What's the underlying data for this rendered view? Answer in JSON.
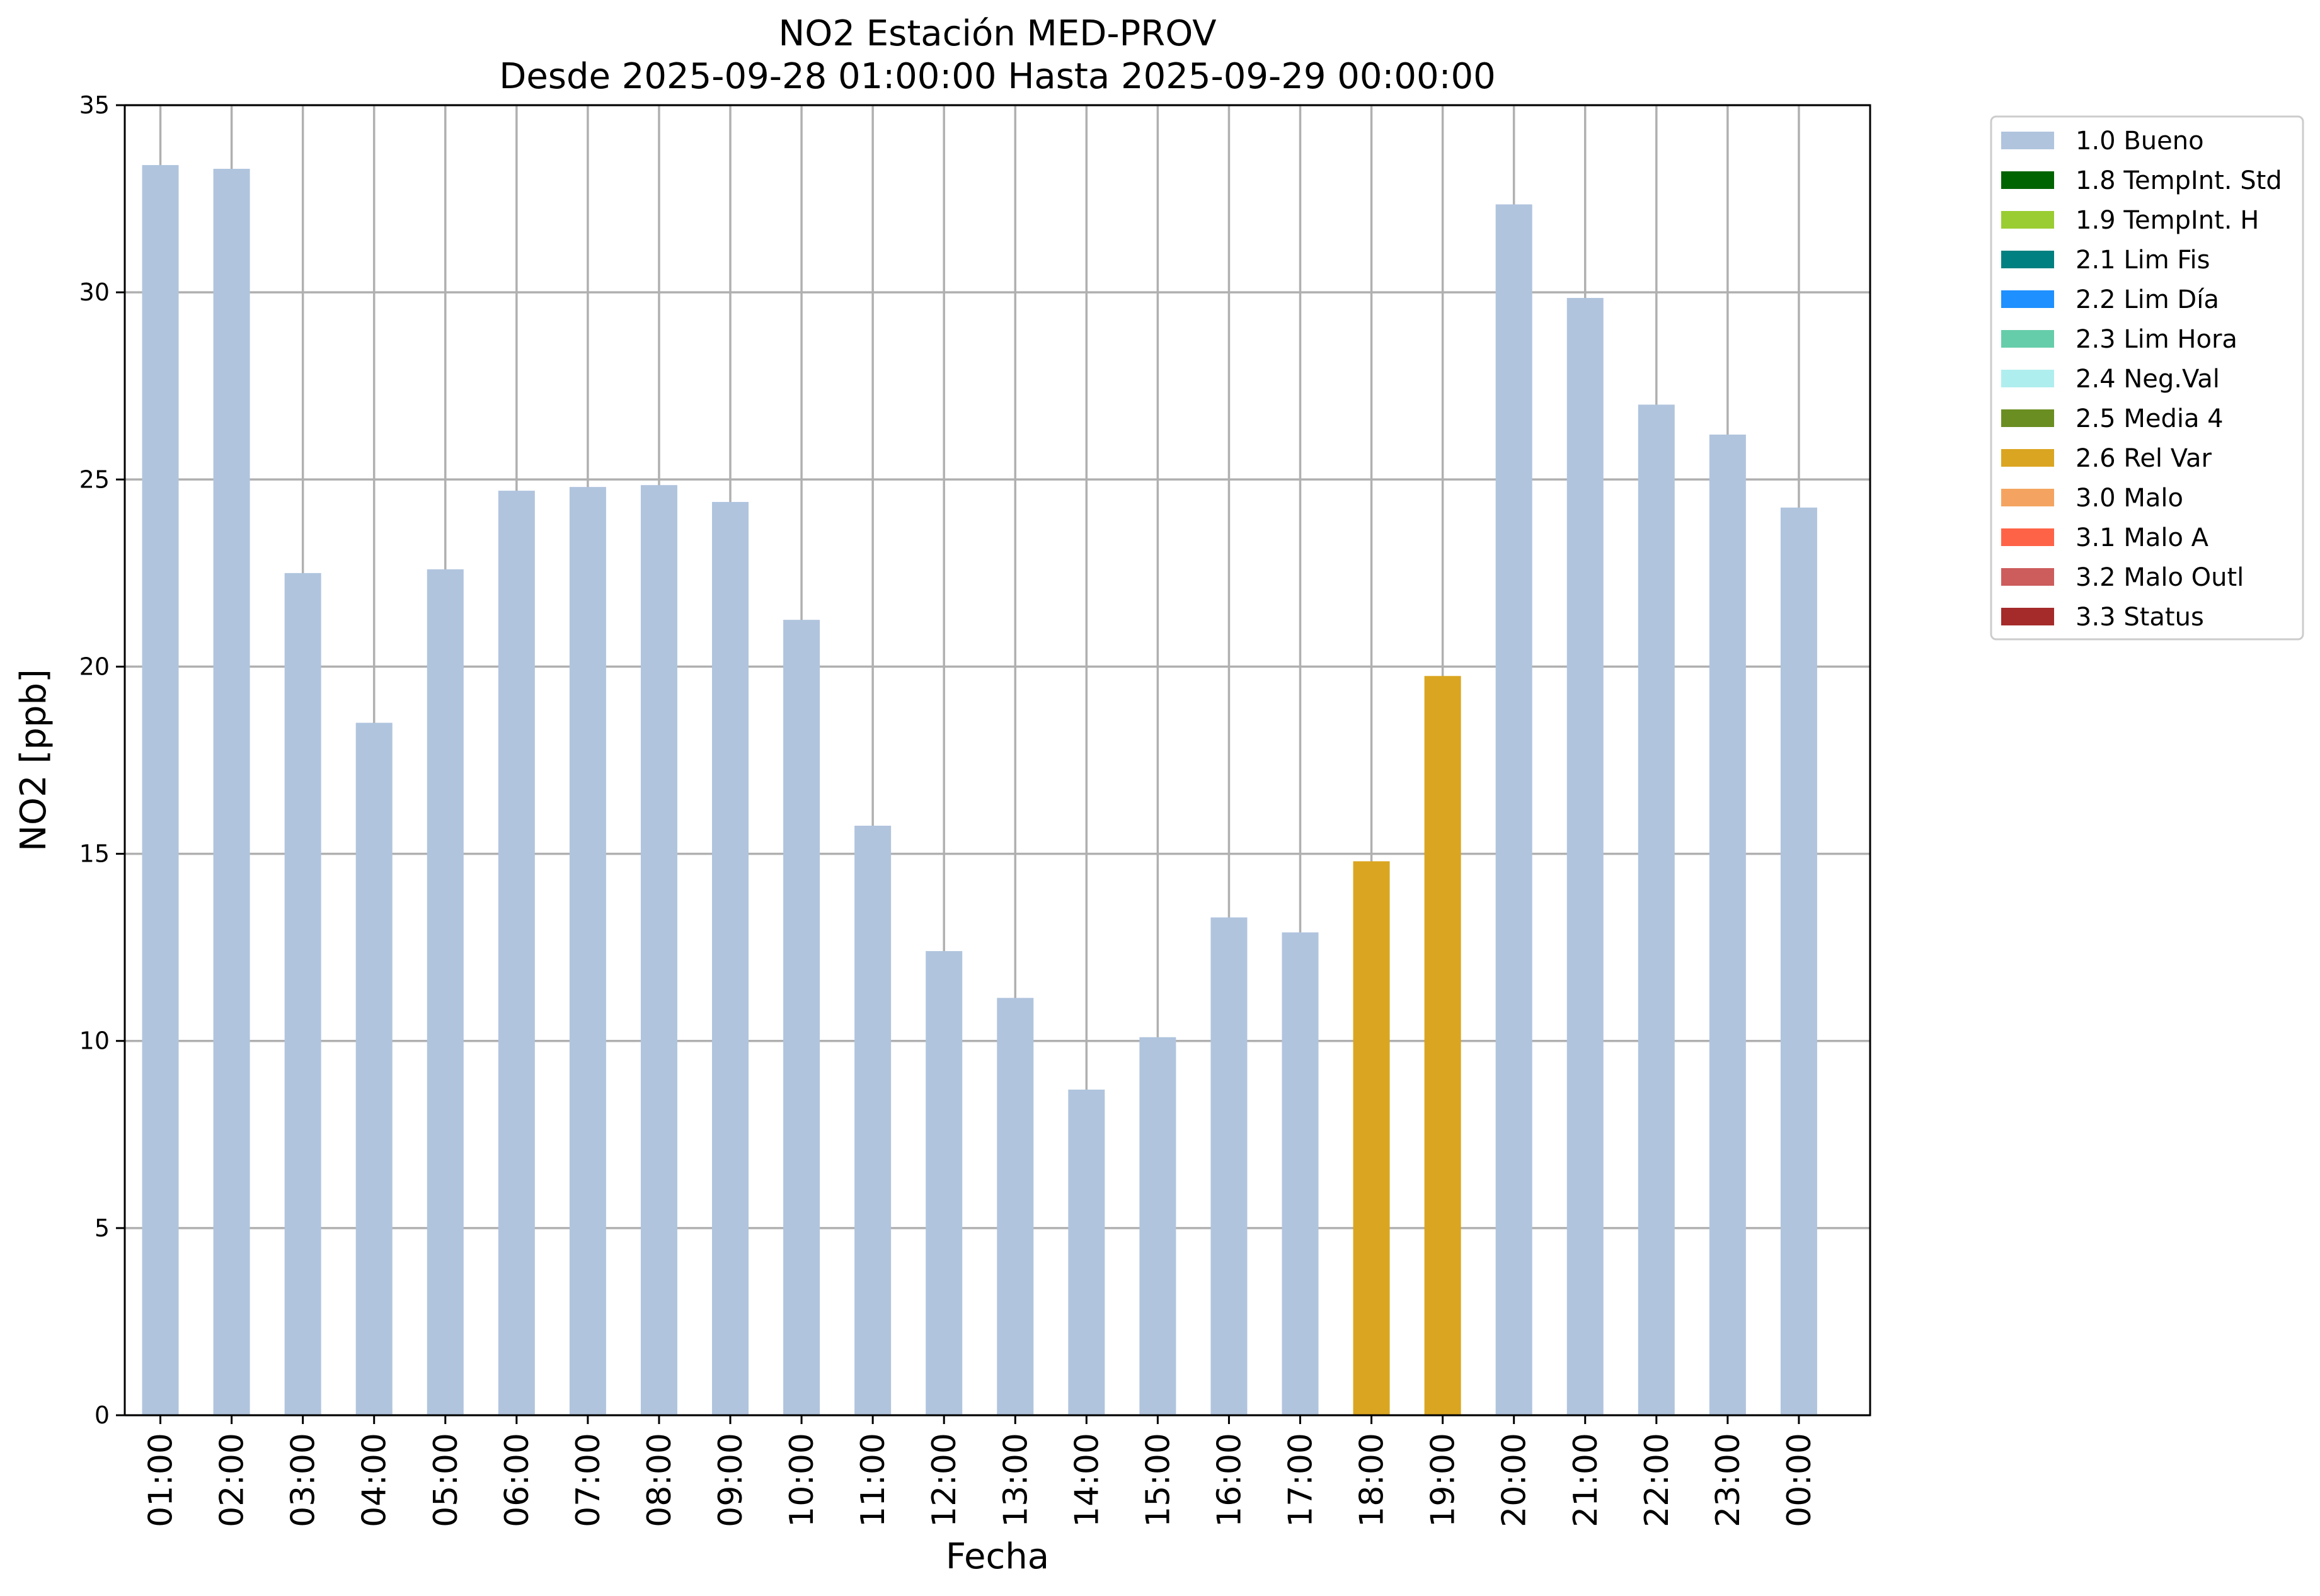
{
  "chart_data": {
    "type": "bar",
    "title": "NO2 Estación MED-PROV",
    "subtitle": "Desde 2025-09-28 01:00:00 Hasta 2025-09-29 00:00:00",
    "xlabel": "Fecha",
    "ylabel": "NO2 [ppb]",
    "ylim": [
      0,
      35
    ],
    "yticks": [
      0,
      5,
      10,
      15,
      20,
      25,
      30,
      35
    ],
    "grid": true,
    "legend_position": "outside-upper-right",
    "x": [
      "01:00",
      "02:00",
      "03:00",
      "04:00",
      "05:00",
      "06:00",
      "07:00",
      "08:00",
      "09:00",
      "10:00",
      "11:00",
      "12:00",
      "13:00",
      "14:00",
      "15:00",
      "16:00",
      "17:00",
      "18:00",
      "19:00",
      "20:00",
      "21:00",
      "22:00",
      "23:00",
      "00:00"
    ],
    "y": [
      33.4,
      33.3,
      22.5,
      18.5,
      22.6,
      24.7,
      24.8,
      24.85,
      24.4,
      21.25,
      15.75,
      12.4,
      11.15,
      8.7,
      10.1,
      13.3,
      12.9,
      14.8,
      19.75,
      32.35,
      29.85,
      27.0,
      26.2,
      24.25
    ],
    "quality": [
      "1.0 Bueno",
      "1.0 Bueno",
      "1.0 Bueno",
      "1.0 Bueno",
      "1.0 Bueno",
      "1.0 Bueno",
      "1.0 Bueno",
      "1.0 Bueno",
      "1.0 Bueno",
      "1.0 Bueno",
      "1.0 Bueno",
      "1.0 Bueno",
      "1.0 Bueno",
      "1.0 Bueno",
      "1.0 Bueno",
      "1.0 Bueno",
      "1.0 Bueno",
      "2.6 Rel Var",
      "2.6 Rel Var",
      "1.0 Bueno",
      "1.0 Bueno",
      "1.0 Bueno",
      "1.0 Bueno",
      "1.0 Bueno"
    ],
    "legend": [
      {
        "name": "1.0 Bueno",
        "color": "#b0c4de"
      },
      {
        "name": "1.8 TempInt. Std",
        "color": "#006400"
      },
      {
        "name": "1.9 TempInt. H",
        "color": "#9acd32"
      },
      {
        "name": "2.1 Lim Fis",
        "color": "#008080"
      },
      {
        "name": "2.2 Lim Día",
        "color": "#1e90ff"
      },
      {
        "name": "2.3 Lim Hora",
        "color": "#66cdaa"
      },
      {
        "name": "2.4 Neg.Val",
        "color": "#afeeee"
      },
      {
        "name": "2.5 Media 4",
        "color": "#6b8e23"
      },
      {
        "name": "2.6 Rel Var",
        "color": "#daa520"
      },
      {
        "name": "3.0 Malo",
        "color": "#f4a460"
      },
      {
        "name": "3.1 Malo A",
        "color": "#ff6347"
      },
      {
        "name": "3.2 Malo Outl",
        "color": "#cd5c5c"
      },
      {
        "name": "3.3 Status",
        "color": "#a52a2a"
      }
    ]
  }
}
